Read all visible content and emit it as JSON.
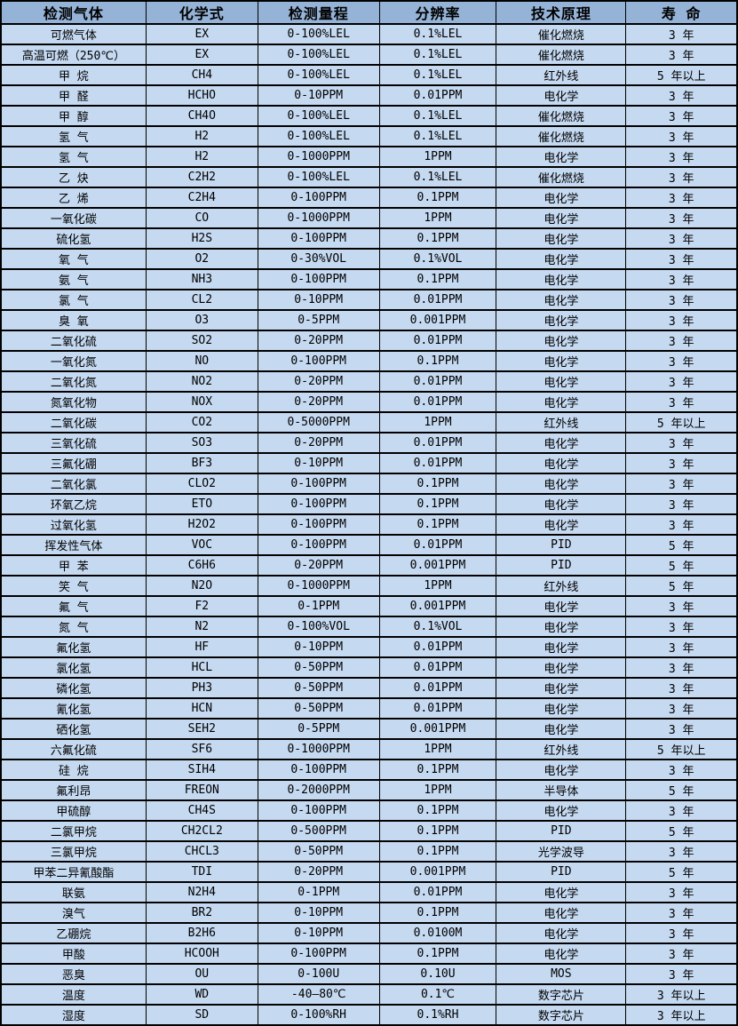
{
  "colors": {
    "header_background": "#95b3d7",
    "row_background": "#c5d9f1",
    "border": "#000000",
    "text": "#000000"
  },
  "table": {
    "columns": [
      "检测气体",
      "化学式",
      "检测量程",
      "分辨率",
      "技术原理",
      "寿 命"
    ],
    "rows": [
      [
        "可燃气体",
        "EX",
        "0-100%LEL",
        "0.1%LEL",
        "催化燃烧",
        "3 年"
      ],
      [
        "高温可燃（250℃）",
        "EX",
        "0-100%LEL",
        "0.1%LEL",
        "催化燃烧",
        "3 年"
      ],
      [
        "甲 烷",
        "CH4",
        "0-100%LEL",
        "0.1%LEL",
        "红外线",
        "5 年以上"
      ],
      [
        "甲 醛",
        "HCHO",
        "0-10PPM",
        "0.01PPM",
        "电化学",
        "3 年"
      ],
      [
        "甲 醇",
        "CH4O",
        "0-100%LEL",
        "0.1%LEL",
        "催化燃烧",
        "3 年"
      ],
      [
        "氢 气",
        "H2",
        "0-100%LEL",
        "0.1%LEL",
        "催化燃烧",
        "3 年"
      ],
      [
        "氢 气",
        "H2",
        "0-1000PPM",
        "1PPM",
        "电化学",
        "3 年"
      ],
      [
        "乙 炔",
        "C2H2",
        "0-100%LEL",
        "0.1%LEL",
        "催化燃烧",
        "3 年"
      ],
      [
        "乙 烯",
        "C2H4",
        "0-100PPM",
        "0.1PPM",
        "电化学",
        "3 年"
      ],
      [
        "一氧化碳",
        "CO",
        "0-1000PPM",
        "1PPM",
        "电化学",
        "3 年"
      ],
      [
        "硫化氢",
        "H2S",
        "0-100PPM",
        "0.1PPM",
        "电化学",
        "3 年"
      ],
      [
        "氧 气",
        "O2",
        "0-30%VOL",
        "0.1%VOL",
        "电化学",
        "3 年"
      ],
      [
        "氨 气",
        "NH3",
        "0-100PPM",
        "0.1PPM",
        "电化学",
        "3 年"
      ],
      [
        "氯 气",
        "CL2",
        "0-10PPM",
        "0.01PPM",
        "电化学",
        "3 年"
      ],
      [
        "臭 氧",
        "O3",
        "0-5PPM",
        "0.001PPM",
        "电化学",
        "3 年"
      ],
      [
        "二氧化硫",
        "SO2",
        "0-20PPM",
        "0.01PPM",
        "电化学",
        "3 年"
      ],
      [
        "一氧化氮",
        "NO",
        "0-100PPM",
        "0.1PPM",
        "电化学",
        "3 年"
      ],
      [
        "二氧化氮",
        "NO2",
        "0-20PPM",
        "0.01PPM",
        "电化学",
        "3 年"
      ],
      [
        "氮氧化物",
        "NOX",
        "0-20PPM",
        "0.01PPM",
        "电化学",
        "3 年"
      ],
      [
        "二氧化碳",
        "CO2",
        "0-5000PPM",
        "1PPM",
        "红外线",
        "5 年以上"
      ],
      [
        "三氧化硫",
        "SO3",
        "0-20PPM",
        "0.01PPM",
        "电化学",
        "3 年"
      ],
      [
        "三氟化硼",
        "BF3",
        "0-10PPM",
        "0.01PPM",
        "电化学",
        "3 年"
      ],
      [
        "二氧化氯",
        "CLO2",
        "0-100PPM",
        "0.1PPM",
        "电化学",
        "3 年"
      ],
      [
        "环氧乙烷",
        "ETO",
        "0-100PPM",
        "0.1PPM",
        "电化学",
        "3 年"
      ],
      [
        "过氧化氢",
        "H2O2",
        "0-100PPM",
        "0.1PPM",
        "电化学",
        "3 年"
      ],
      [
        "挥发性气体",
        "VOC",
        "0-100PPM",
        "0.01PPM",
        "PID",
        "5 年"
      ],
      [
        "甲 苯",
        "C6H6",
        "0-20PPM",
        "0.001PPM",
        "PID",
        "5 年"
      ],
      [
        "笑 气",
        "N2O",
        "0-1000PPM",
        "1PPM",
        "红外线",
        "5 年"
      ],
      [
        "氟 气",
        "F2",
        "0-1PPM",
        "0.001PPM",
        "电化学",
        "3 年"
      ],
      [
        "氮 气",
        "N2",
        "0-100%VOL",
        "0.1%VOL",
        "电化学",
        "3 年"
      ],
      [
        "氟化氢",
        "HF",
        "0-10PPM",
        "0.01PPM",
        "电化学",
        "3 年"
      ],
      [
        "氯化氢",
        "HCL",
        "0-50PPM",
        "0.01PPM",
        "电化学",
        "3 年"
      ],
      [
        "磷化氢",
        "PH3",
        "0-50PPM",
        "0.01PPM",
        "电化学",
        "3 年"
      ],
      [
        "氰化氢",
        "HCN",
        "0-50PPM",
        "0.01PPM",
        "电化学",
        "3 年"
      ],
      [
        "硒化氢",
        "SEH2",
        "0-5PPM",
        "0.001PPM",
        "电化学",
        "3 年"
      ],
      [
        "六氟化硫",
        "SF6",
        "0-1000PPM",
        "1PPM",
        "红外线",
        "5 年以上"
      ],
      [
        "硅 烷",
        "SIH4",
        "0-100PPM",
        "0.1PPM",
        "电化学",
        "3 年"
      ],
      [
        "氟利昂",
        "FREON",
        "0-2000PPM",
        "1PPM",
        "半导体",
        "5 年"
      ],
      [
        "甲硫醇",
        "CH4S",
        "0-100PPM",
        "0.1PPM",
        "电化学",
        "3 年"
      ],
      [
        "二氯甲烷",
        "CH2CL2",
        "0-500PPM",
        "0.1PPM",
        "PID",
        "5 年"
      ],
      [
        "三氯甲烷",
        "CHCL3",
        "0-50PPM",
        "0.1PPM",
        "光学波导",
        "3 年"
      ],
      [
        "甲苯二异氰酸酯",
        "TDI",
        "0-20PPM",
        "0.001PPM",
        "PID",
        "5 年"
      ],
      [
        "联氨",
        "N2H4",
        "0-1PPM",
        "0.01PPM",
        "电化学",
        "3 年"
      ],
      [
        "溴气",
        "BR2",
        "0-10PPM",
        "0.1PPM",
        "电化学",
        "3 年"
      ],
      [
        "乙硼烷",
        "B2H6",
        "0-10PPM",
        "0.0100M",
        "电化学",
        "3 年"
      ],
      [
        "甲酸",
        "HCOOH",
        "0-100PPM",
        "0.1PPM",
        "电化学",
        "3 年"
      ],
      [
        "恶臭",
        "OU",
        "0-100U",
        "0.10U",
        "MOS",
        "3 年"
      ],
      [
        "温度",
        "WD",
        "-40—80℃",
        "0.1℃",
        "数字芯片",
        "3 年以上"
      ],
      [
        "湿度",
        "SD",
        "0-100%RH",
        "0.1%RH",
        "数字芯片",
        "3 年以上"
      ]
    ]
  }
}
